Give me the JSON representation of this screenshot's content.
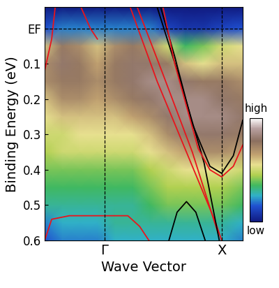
{
  "chart_data": {
    "type": "heatmap",
    "xlabel": "Wave Vector",
    "ylabel": "Binding Energy (eV)",
    "xlim": [
      -0.51,
      1.18
    ],
    "ylim": [
      0.6,
      -0.06
    ],
    "xticks": [
      {
        "value": 0,
        "label": "Γ"
      },
      {
        "value": 1,
        "label": "X"
      }
    ],
    "yticks": [
      {
        "value": 0,
        "label": "EF"
      },
      0.1,
      0.2,
      0.3,
      0.4,
      0.5,
      0.6
    ],
    "x": [
      -0.51,
      -0.36,
      -0.21,
      -0.06,
      0.09,
      0.24,
      0.39,
      0.54,
      0.69,
      0.84,
      0.99,
      1.18
    ],
    "y": [
      -0.06,
      0.0,
      0.05,
      0.1,
      0.15,
      0.2,
      0.25,
      0.3,
      0.35,
      0.4,
      0.45,
      0.5,
      0.55,
      0.6
    ],
    "values": [
      [
        0.0,
        0.0,
        0.0,
        0.0,
        0.0,
        0.0,
        0.0,
        0.0,
        0.0,
        0.0,
        0.0,
        0.0
      ],
      [
        0.15,
        0.2,
        0.2,
        0.2,
        0.2,
        0.2,
        0.2,
        0.12,
        0.08,
        0.08,
        0.12,
        0.15
      ],
      [
        0.6,
        0.75,
        0.7,
        0.6,
        0.7,
        0.75,
        0.7,
        0.5,
        0.35,
        0.4,
        0.5,
        0.55
      ],
      [
        0.7,
        0.8,
        0.75,
        0.65,
        0.75,
        0.8,
        0.8,
        0.75,
        0.6,
        0.55,
        0.6,
        0.6
      ],
      [
        0.7,
        0.75,
        0.75,
        0.7,
        0.75,
        0.8,
        0.85,
        0.85,
        0.8,
        0.75,
        0.75,
        0.7
      ],
      [
        0.6,
        0.7,
        0.7,
        0.65,
        0.7,
        0.75,
        0.8,
        0.85,
        0.85,
        0.85,
        0.8,
        0.75
      ],
      [
        0.55,
        0.6,
        0.6,
        0.6,
        0.6,
        0.65,
        0.7,
        0.8,
        0.85,
        0.85,
        0.85,
        0.8
      ],
      [
        0.5,
        0.5,
        0.55,
        0.55,
        0.55,
        0.55,
        0.6,
        0.7,
        0.8,
        0.8,
        0.8,
        0.75
      ],
      [
        0.45,
        0.5,
        0.5,
        0.5,
        0.5,
        0.5,
        0.55,
        0.6,
        0.65,
        0.7,
        0.7,
        0.65
      ],
      [
        0.4,
        0.4,
        0.4,
        0.4,
        0.4,
        0.4,
        0.45,
        0.5,
        0.55,
        0.55,
        0.55,
        0.5
      ],
      [
        0.35,
        0.35,
        0.35,
        0.35,
        0.35,
        0.35,
        0.4,
        0.45,
        0.45,
        0.45,
        0.45,
        0.4
      ],
      [
        0.3,
        0.3,
        0.3,
        0.3,
        0.3,
        0.3,
        0.35,
        0.4,
        0.4,
        0.4,
        0.4,
        0.35
      ],
      [
        0.2,
        0.25,
        0.25,
        0.25,
        0.3,
        0.3,
        0.3,
        0.3,
        0.3,
        0.3,
        0.3,
        0.25
      ],
      [
        0.15,
        0.2,
        0.2,
        0.2,
        0.25,
        0.25,
        0.25,
        0.25,
        0.25,
        0.25,
        0.25,
        0.2
      ]
    ],
    "colorbar": {
      "range": [
        0,
        1
      ],
      "ticks": [
        {
          "value": 1,
          "label": "high"
        },
        {
          "value": 0,
          "label": "low"
        }
      ]
    },
    "series": [
      {
        "color": "#e8141c",
        "x": [
          -0.51,
          -0.45,
          -0.42
        ],
        "values": [
          0.12,
          0.03,
          -0.06
        ]
      },
      {
        "color": "#e8141c",
        "x": [
          -0.2,
          -0.12,
          -0.06
        ],
        "values": [
          -0.06,
          0.0,
          0.03
        ]
      },
      {
        "color": "#e8141c",
        "x": [
          0.22,
          0.45,
          0.7,
          0.95,
          1.0
        ],
        "values": [
          -0.06,
          0.15,
          0.35,
          0.55,
          0.6
        ]
      },
      {
        "color": "#e8141c",
        "x": [
          0.28,
          0.5,
          0.75,
          0.97
        ],
        "values": [
          -0.06,
          0.13,
          0.35,
          0.58
        ]
      },
      {
        "color": "#000000",
        "x": [
          0.45,
          0.65,
          0.85,
          0.98
        ],
        "values": [
          -0.06,
          0.15,
          0.38,
          0.6
        ]
      },
      {
        "color": "#000000",
        "x": [
          0.48,
          0.6,
          0.75,
          0.9,
          1.0,
          1.1,
          1.18
        ],
        "values": [
          -0.06,
          0.08,
          0.27,
          0.39,
          0.41,
          0.36,
          0.26
        ]
      },
      {
        "color": "#e8141c",
        "x": [
          0.5,
          0.6,
          0.7,
          0.8,
          0.9,
          1.0,
          1.1,
          1.18
        ],
        "values": [
          -0.06,
          0.1,
          0.22,
          0.34,
          0.4,
          0.42,
          0.39,
          0.33
        ]
      },
      {
        "color": "#e8141c",
        "x": [
          -0.51,
          -0.45,
          -0.3,
          0.0,
          0.2,
          0.3,
          0.38
        ],
        "values": [
          0.6,
          0.54,
          0.53,
          0.53,
          0.53,
          0.56,
          0.6
        ]
      },
      {
        "color": "#000000",
        "x": [
          0.55,
          0.62,
          0.7,
          0.78,
          0.86
        ],
        "values": [
          0.6,
          0.52,
          0.49,
          0.52,
          0.6
        ]
      }
    ]
  }
}
